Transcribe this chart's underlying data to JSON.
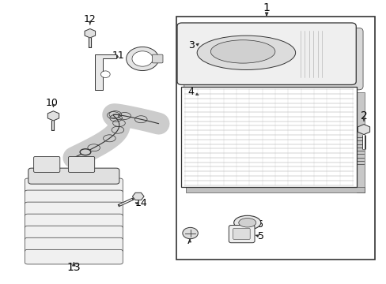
{
  "bg_color": "#ffffff",
  "line_color": "#333333",
  "text_color": "#000000"
}
